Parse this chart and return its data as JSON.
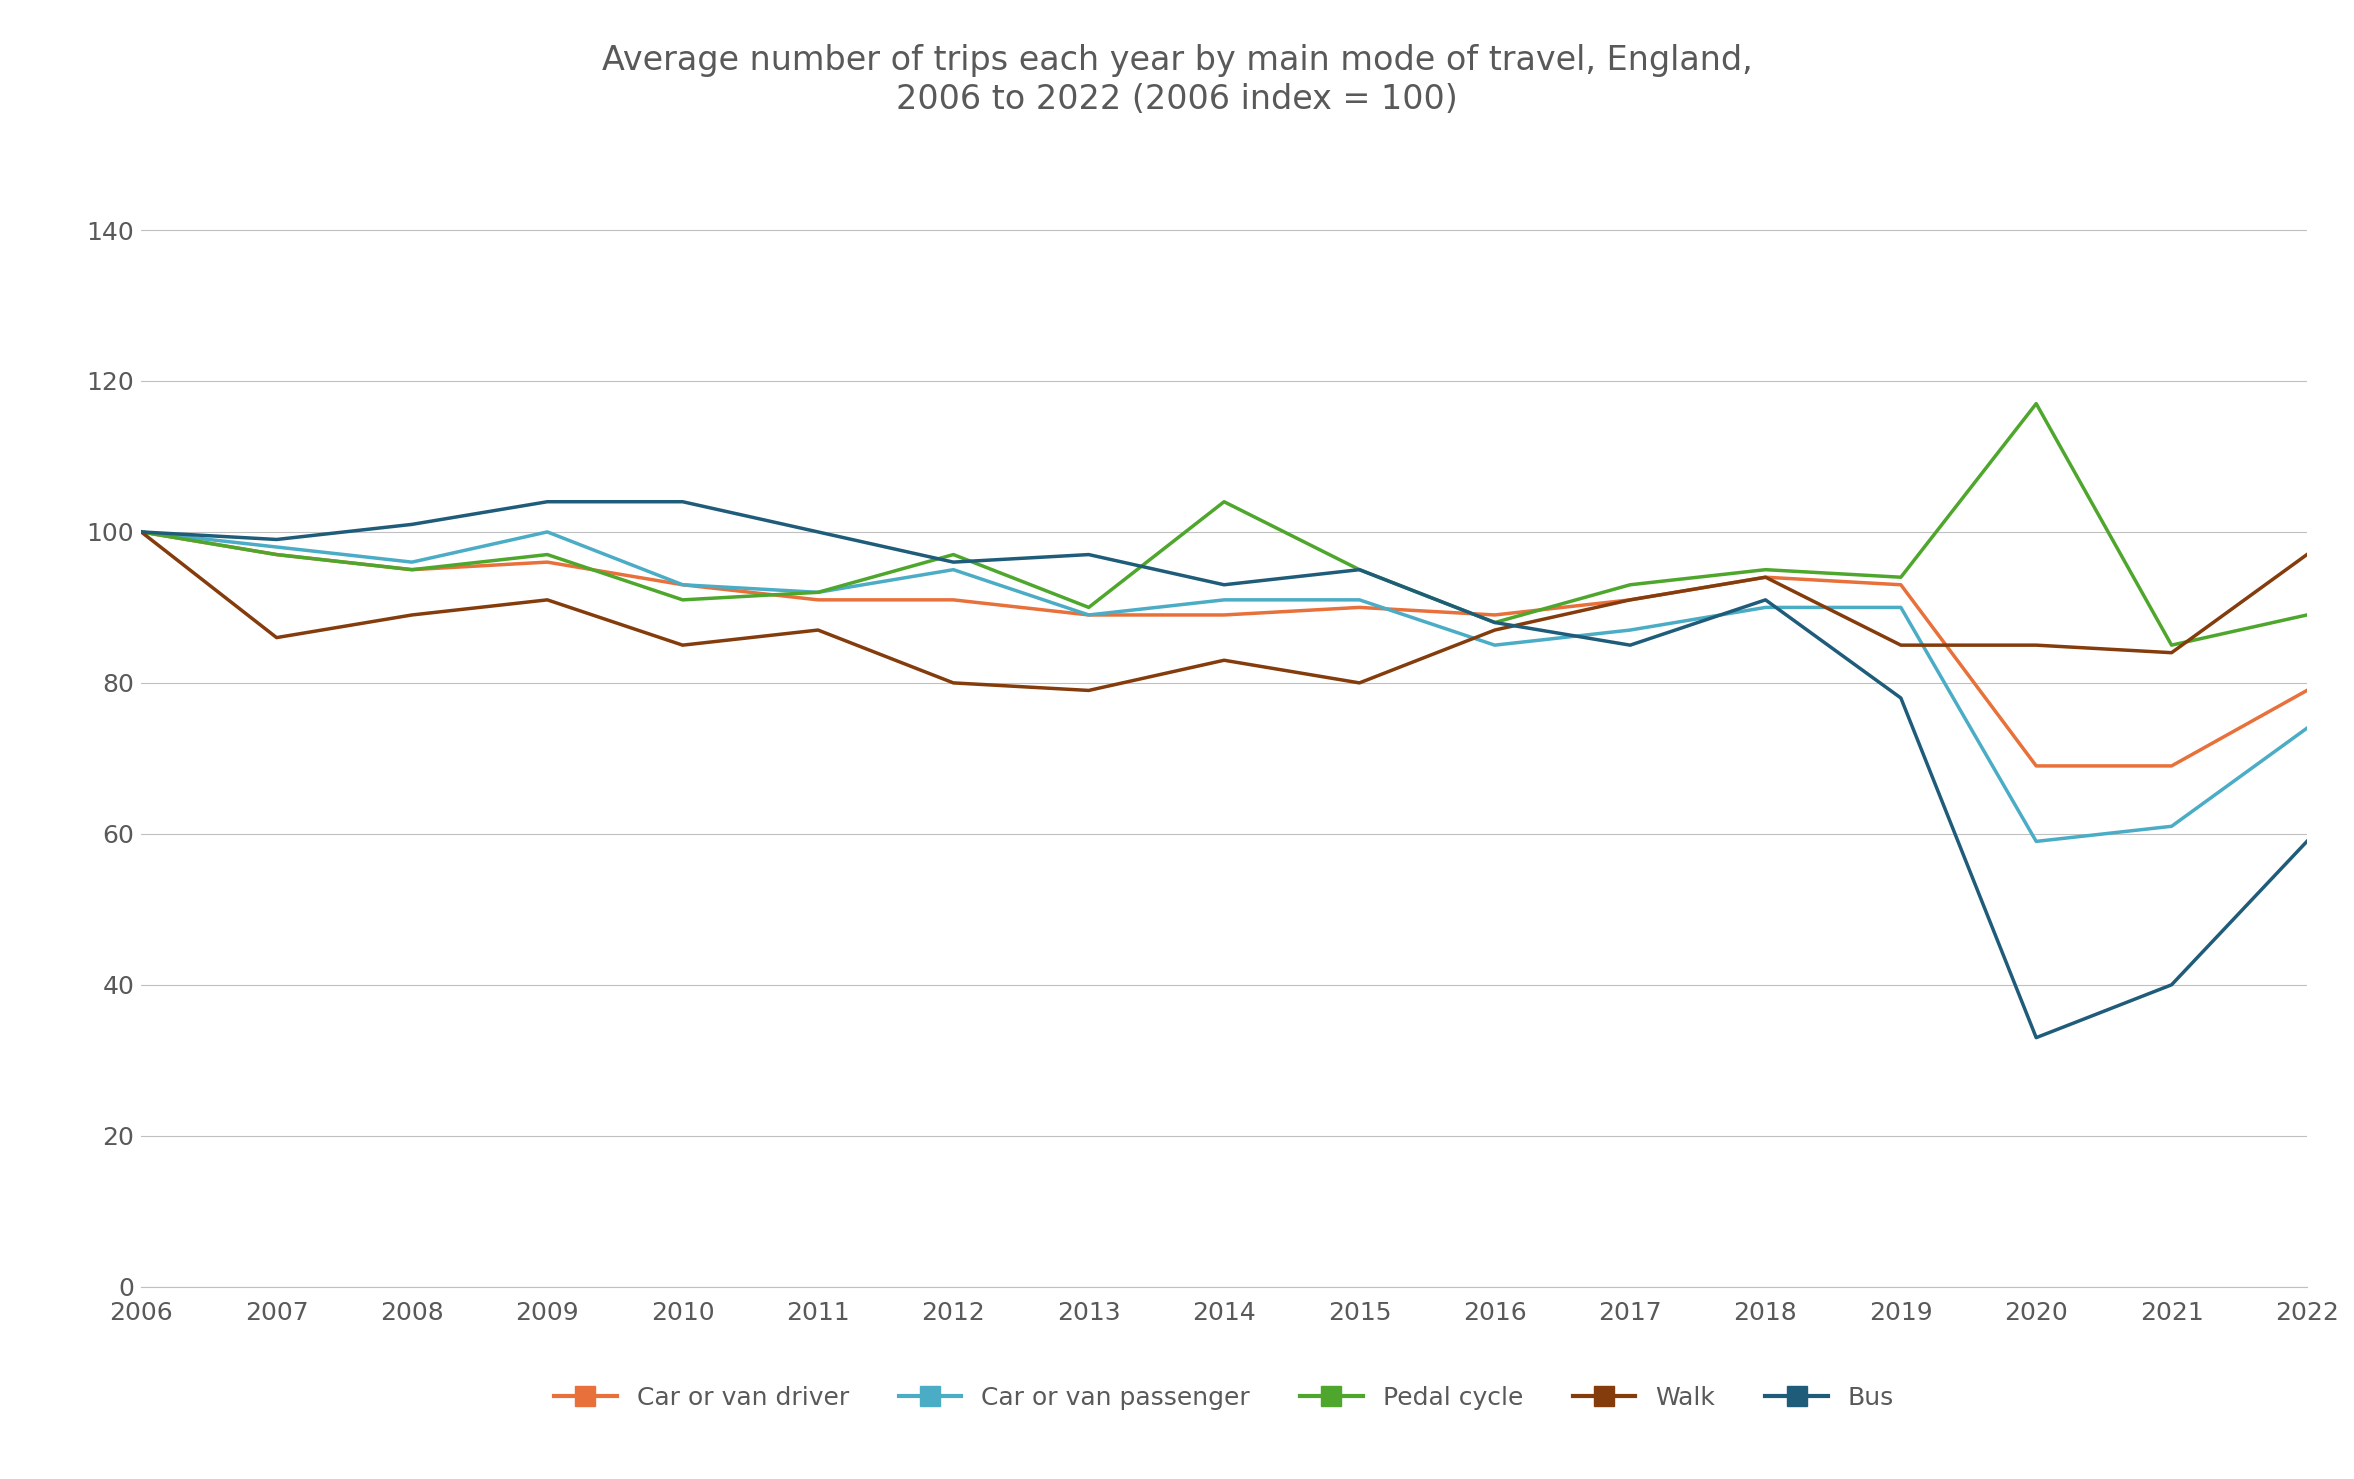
{
  "title_line1": "Average number of trips each year by main mode of travel, England,",
  "title_line2": "2006 to 2022 (2006 index = 100)",
  "years": [
    2006,
    2007,
    2008,
    2009,
    2010,
    2011,
    2012,
    2013,
    2014,
    2015,
    2016,
    2017,
    2018,
    2019,
    2020,
    2021,
    2022
  ],
  "series": {
    "Car or van driver": {
      "color": "#E8703A",
      "values": [
        100,
        97,
        95,
        96,
        93,
        91,
        91,
        89,
        89,
        90,
        89,
        91,
        94,
        93,
        69,
        69,
        79
      ]
    },
    "Car or van passenger": {
      "color": "#4BACC6",
      "values": [
        100,
        98,
        96,
        100,
        93,
        92,
        95,
        89,
        91,
        91,
        85,
        87,
        90,
        90,
        59,
        61,
        74
      ]
    },
    "Pedal cycle": {
      "color": "#4EA72C",
      "values": [
        100,
        97,
        95,
        97,
        91,
        92,
        97,
        90,
        104,
        95,
        88,
        93,
        95,
        94,
        117,
        85,
        89
      ]
    },
    "Walk": {
      "color": "#843C0C",
      "values": [
        100,
        86,
        89,
        91,
        85,
        87,
        80,
        79,
        83,
        80,
        87,
        91,
        94,
        85,
        85,
        84,
        97
      ]
    },
    "Bus": {
      "color": "#1F5C7A",
      "values": [
        100,
        99,
        101,
        104,
        104,
        100,
        96,
        97,
        93,
        95,
        88,
        85,
        91,
        78,
        33,
        40,
        59
      ]
    }
  },
  "ylim": [
    0,
    145
  ],
  "yticks": [
    0,
    20,
    40,
    60,
    80,
    100,
    120,
    140
  ],
  "background_color": "#ffffff",
  "title_fontsize": 24,
  "tick_fontsize": 18,
  "legend_fontsize": 18
}
